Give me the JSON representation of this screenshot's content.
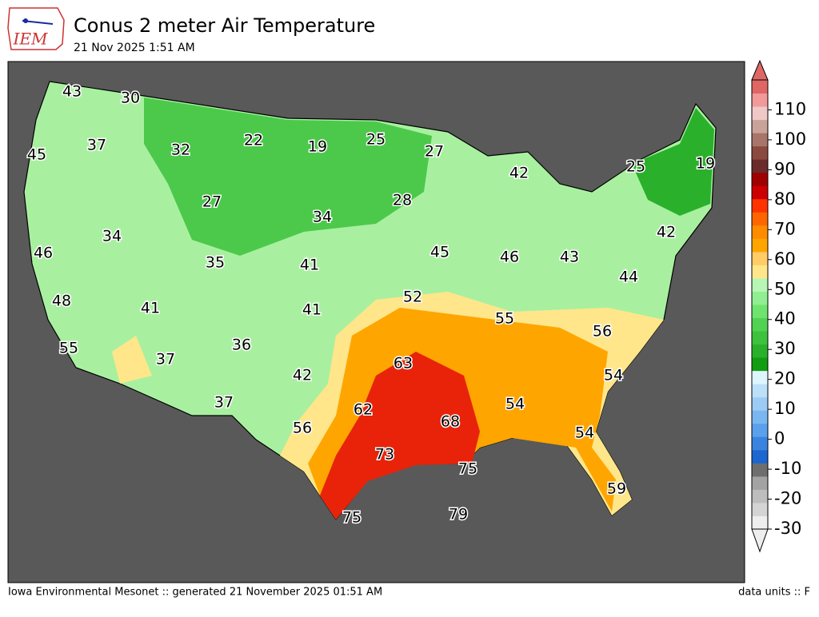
{
  "header": {
    "logo": "IEM",
    "title": "Conus 2 meter Air Temperature",
    "subtitle": "21 Nov 2025 1:51 AM"
  },
  "footer": {
    "left": "Iowa Environmental Mesonet :: generated 21 November 2025 01:51 AM",
    "right": "data units :: F"
  },
  "map": {
    "labels": [
      43,
      30,
      45,
      37,
      32,
      22,
      19,
      25,
      27,
      42,
      25,
      19,
      27,
      28,
      34,
      34,
      46,
      35,
      41,
      45,
      46,
      43,
      42,
      44,
      48,
      41,
      41,
      52,
      55,
      56,
      55,
      37,
      36,
      42,
      63,
      54,
      54,
      62,
      68,
      54,
      37,
      56,
      73,
      75,
      59,
      75,
      79
    ]
  },
  "colorbar": {
    "lim": [
      -30,
      120
    ],
    "ticks": [
      -30,
      -20,
      -10,
      0,
      10,
      20,
      30,
      40,
      50,
      60,
      70,
      80,
      90,
      100,
      110
    ],
    "colors": [
      "#eeeeee",
      "#d4d4d4",
      "#bdbdbd",
      "#a3a3a3",
      "#6e6e6e",
      "#1c66d0",
      "#3a84e0",
      "#5aa0ea",
      "#7ab6f0",
      "#9cccf5",
      "#bde0f9",
      "#ddf6fd",
      "#129c12",
      "#2bb02b",
      "#3cc23c",
      "#52d252",
      "#6ee46e",
      "#90ef90",
      "#b6f7b6",
      "#ffe68a",
      "#ffcc66",
      "#ffa500",
      "#ff8c00",
      "#ff6600",
      "#ff3300",
      "#cc0000",
      "#a00000",
      "#6b2b2b",
      "#8b4a3f",
      "#a8756a",
      "#c9a39a",
      "#f0c8c8",
      "#f29a9a",
      "#e06666"
    ]
  }
}
